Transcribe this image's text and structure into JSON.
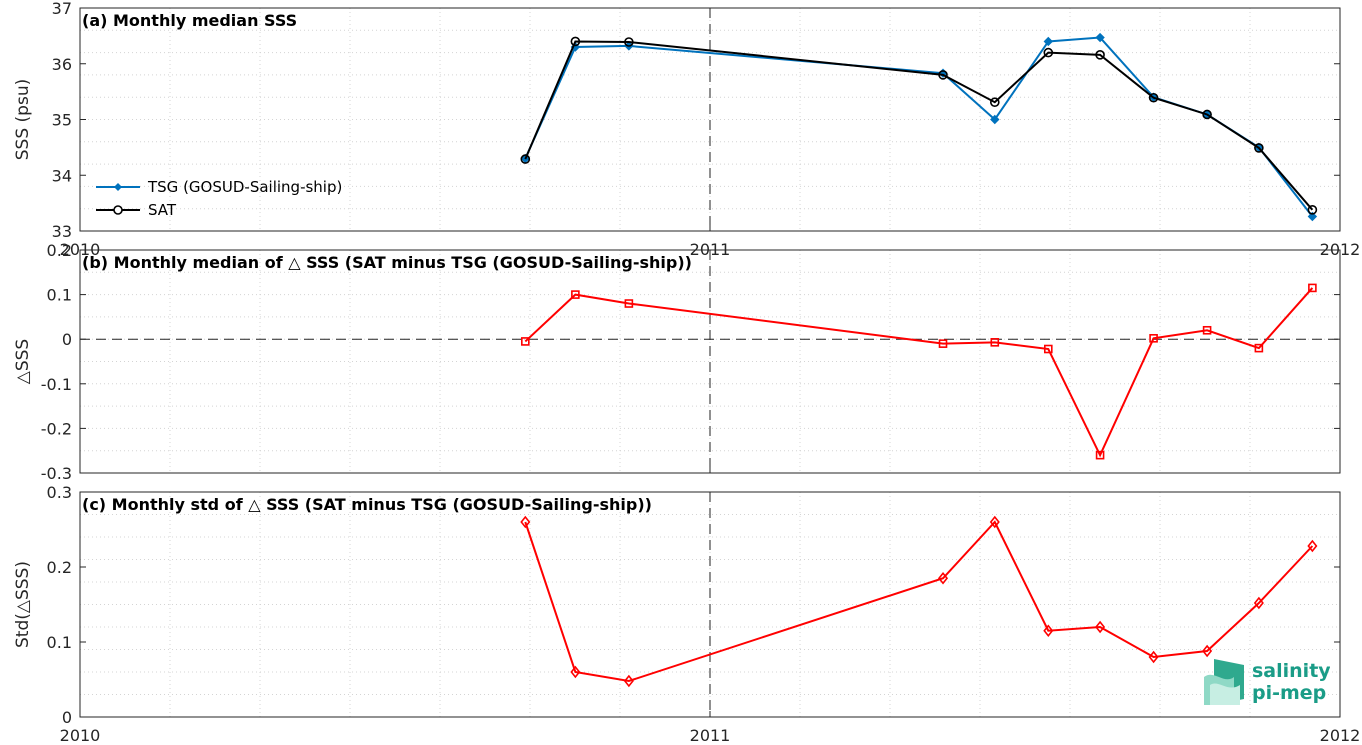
{
  "chart_data": [
    {
      "type": "line",
      "title": "(a) Monthly median SSS",
      "ylabel": "SSS (psu)",
      "ylim": [
        33,
        37
      ],
      "yticks": [
        33,
        34,
        35,
        36,
        37
      ],
      "xlim": [
        "2010-01-01",
        "2012-01-01"
      ],
      "xticks": [
        "2010",
        "2011",
        "2012"
      ],
      "grid": "minor dotted",
      "legend_placement": "lower-left",
      "series": [
        {
          "name": "TSG (GOSUD-Sailing-ship)",
          "color": "#0072BD",
          "marker": "diamond-filled",
          "x": [
            "2010-09-16",
            "2010-10-15",
            "2010-11-15",
            "2011-05-16",
            "2011-06-15",
            "2011-07-16",
            "2011-08-15",
            "2011-09-15",
            "2011-10-16",
            "2011-11-15",
            "2011-12-16"
          ],
          "y": [
            34.3,
            36.3,
            36.32,
            35.83,
            35.0,
            36.4,
            36.47,
            35.4,
            35.09,
            34.5,
            33.26
          ]
        },
        {
          "name": "SAT",
          "color": "#000000",
          "marker": "circle-open",
          "x": [
            "2010-09-16",
            "2010-10-15",
            "2010-11-15",
            "2011-05-16",
            "2011-06-15",
            "2011-07-16",
            "2011-08-15",
            "2011-09-15",
            "2011-10-16",
            "2011-11-15",
            "2011-12-16"
          ],
          "y": [
            34.29,
            36.4,
            36.39,
            35.8,
            35.31,
            36.2,
            36.16,
            35.39,
            35.09,
            34.49,
            33.38
          ]
        }
      ]
    },
    {
      "type": "line",
      "title": "(b) Monthly median of △ SSS (SAT minus TSG (GOSUD-Sailing-ship))",
      "ylabel": "△SSS",
      "ylim": [
        -0.3,
        0.2
      ],
      "yticks": [
        -0.3,
        -0.2,
        -0.1,
        0,
        0.1,
        0.2
      ],
      "ytick_labels": [
        "-0.3",
        "-0.2",
        "-0.1",
        "0",
        "0.1",
        "0.2"
      ],
      "xlim": [
        "2010-01-01",
        "2012-01-01"
      ],
      "reference_line": 0,
      "series": [
        {
          "color": "#FF0000",
          "marker": "square-open",
          "x": [
            "2010-09-16",
            "2010-10-15",
            "2010-11-15",
            "2011-05-16",
            "2011-06-15",
            "2011-07-16",
            "2011-08-15",
            "2011-09-15",
            "2011-10-16",
            "2011-11-15",
            "2011-12-16"
          ],
          "y": [
            -0.005,
            0.1,
            0.08,
            -0.01,
            -0.007,
            -0.022,
            -0.26,
            0.002,
            0.02,
            -0.02,
            0.115
          ]
        }
      ]
    },
    {
      "type": "line",
      "title": "(c) Monthly std of △ SSS (SAT minus TSG (GOSUD-Sailing-ship))",
      "ylabel": "Std(△SSS)",
      "ylim": [
        0,
        0.3
      ],
      "yticks": [
        0,
        0.1,
        0.2,
        0.3
      ],
      "ytick_labels": [
        "0",
        "0.1",
        "0.2",
        "0.3"
      ],
      "xlim": [
        "2010-01-01",
        "2012-01-01"
      ],
      "xticks": [
        "2010",
        "2011",
        "2012"
      ],
      "series": [
        {
          "color": "#FF0000",
          "marker": "diamond-open",
          "x": [
            "2010-09-16",
            "2010-10-15",
            "2010-11-15",
            "2011-05-16",
            "2011-06-15",
            "2011-07-16",
            "2011-08-15",
            "2011-09-15",
            "2011-10-16",
            "2011-11-15",
            "2011-12-16"
          ],
          "y": [
            0.26,
            0.06,
            0.048,
            0.185,
            0.26,
            0.115,
            0.12,
            0.08,
            0.088,
            0.152,
            0.228
          ]
        }
      ]
    }
  ],
  "logo": {
    "line1": "salinity",
    "line2": "pi-mep",
    "color": "#1a9c87"
  }
}
